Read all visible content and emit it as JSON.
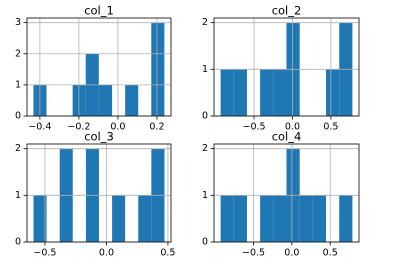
{
  "chart_data": [
    {
      "type": "histogram",
      "title": "col_1",
      "color": "#1f77b4",
      "grid": true,
      "bins": [
        -0.433,
        -0.366,
        -0.299,
        -0.232,
        -0.165,
        -0.098,
        -0.03,
        0.037,
        0.104,
        0.171,
        0.238
      ],
      "values": [
        1,
        0,
        0,
        1,
        2,
        1,
        0,
        1,
        0,
        3
      ],
      "xlim": [
        -0.466,
        0.272
      ],
      "ylim": [
        0,
        3.15
      ],
      "xticks": [
        {
          "value": -0.4,
          "label": "−0.4"
        },
        {
          "value": -0.2,
          "label": "−0.2"
        },
        {
          "value": 0,
          "label": "0.0"
        },
        0.2
      ],
      "yticks": [
        0,
        1,
        2,
        3
      ]
    },
    {
      "type": "histogram",
      "title": "col_2",
      "color": "#1f77b4",
      "grid": true,
      "bins": [
        -0.935,
        -0.764,
        -0.592,
        -0.421,
        -0.249,
        -0.078,
        0.094,
        0.266,
        0.437,
        0.609,
        0.78
      ],
      "values": [
        1,
        1,
        0,
        1,
        1,
        2,
        0,
        0,
        1,
        2
      ],
      "xlim": [
        -1.021,
        0.866
      ],
      "ylim": [
        0,
        2.1
      ],
      "xticks": [
        {
          "value": -0.5,
          "label": "−0.5"
        },
        {
          "value": 0,
          "label": "0.0"
        },
        0.5
      ],
      "yticks": [
        0,
        1,
        2
      ]
    },
    {
      "type": "histogram",
      "title": "col_3",
      "color": "#1f77b4",
      "grid": true,
      "bins": [
        -0.593,
        -0.487,
        -0.38,
        -0.274,
        -0.167,
        -0.061,
        0.046,
        0.152,
        0.259,
        0.365,
        0.472
      ],
      "values": [
        1,
        0,
        2,
        0,
        2,
        0,
        1,
        0,
        1,
        2
      ],
      "xlim": [
        -0.646,
        0.525
      ],
      "ylim": [
        0,
        2.1
      ],
      "xticks": [
        {
          "value": -0.5,
          "label": "−0.5"
        },
        {
          "value": 0,
          "label": "0.0"
        },
        0.5
      ],
      "yticks": [
        0,
        1,
        2
      ]
    },
    {
      "type": "histogram",
      "title": "col_4",
      "color": "#1f77b4",
      "grid": true,
      "bins": [
        -0.93,
        -0.758,
        -0.586,
        -0.414,
        -0.242,
        -0.07,
        0.102,
        0.274,
        0.446,
        0.618,
        0.79
      ],
      "values": [
        1,
        1,
        0,
        1,
        1,
        2,
        1,
        1,
        0,
        1
      ],
      "xlim": [
        -1.016,
        0.876
      ],
      "ylim": [
        0,
        2.1
      ],
      "xticks": [
        {
          "value": -0.5,
          "label": "−0.5"
        },
        {
          "value": 0,
          "label": "0.0"
        },
        0.5
      ],
      "yticks": [
        0,
        1,
        2
      ]
    }
  ]
}
